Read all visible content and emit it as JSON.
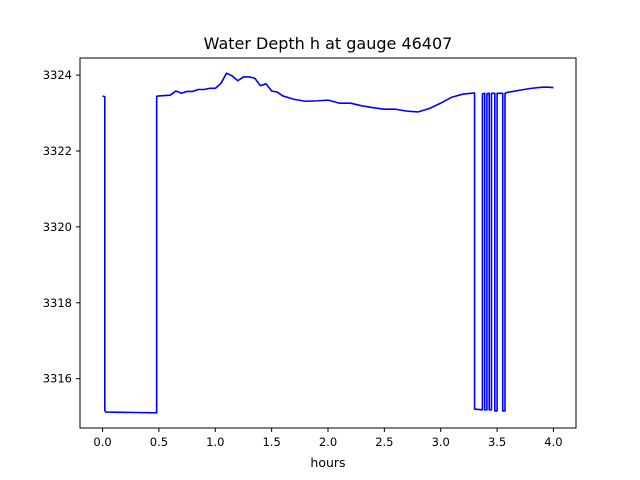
{
  "chart_data": {
    "type": "line",
    "title": "Water Depth h at gauge 46407",
    "xlabel": "hours",
    "ylabel": "",
    "xlim": [
      -0.2,
      4.2
    ],
    "ylim": [
      3314.7,
      3324.45
    ],
    "xticks": [
      0.0,
      0.5,
      1.0,
      1.5,
      2.0,
      2.5,
      3.0,
      3.5,
      4.0
    ],
    "xtick_labels": [
      "0.0",
      "0.5",
      "1.0",
      "1.5",
      "2.0",
      "2.5",
      "3.0",
      "3.5",
      "4.0"
    ],
    "yticks": [
      3316,
      3318,
      3320,
      3322,
      3324
    ],
    "ytick_labels": [
      "3316",
      "3318",
      "3320",
      "3322",
      "3324"
    ],
    "grid": false,
    "legend": "none",
    "series": [
      {
        "color": "#0000ff",
        "x": [
          0.0,
          0.02,
          0.02,
          0.03,
          0.48,
          0.48,
          0.5,
          0.6,
          0.65,
          0.7,
          0.75,
          0.8,
          0.85,
          0.9,
          0.95,
          1.0,
          1.05,
          1.1,
          1.15,
          1.2,
          1.25,
          1.3,
          1.35,
          1.4,
          1.45,
          1.5,
          1.55,
          1.6,
          1.7,
          1.8,
          1.9,
          2.0,
          2.05,
          2.1,
          2.2,
          2.3,
          2.4,
          2.5,
          2.6,
          2.7,
          2.8,
          2.9,
          3.0,
          3.1,
          3.2,
          3.3,
          3.3,
          3.37,
          3.37,
          3.39,
          3.39,
          3.41,
          3.41,
          3.43,
          3.43,
          3.45,
          3.45,
          3.48,
          3.48,
          3.5,
          3.5,
          3.55,
          3.55,
          3.57,
          3.57,
          3.6,
          3.7,
          3.8,
          3.9,
          3.95,
          4.0
        ],
        "y": [
          3323.45,
          3323.43,
          3315.15,
          3315.12,
          3315.1,
          3323.44,
          3323.45,
          3323.47,
          3323.58,
          3323.52,
          3323.57,
          3323.57,
          3323.62,
          3323.62,
          3323.65,
          3323.65,
          3323.78,
          3324.05,
          3323.98,
          3323.85,
          3323.95,
          3323.95,
          3323.92,
          3323.72,
          3323.77,
          3323.58,
          3323.55,
          3323.45,
          3323.36,
          3323.31,
          3323.32,
          3323.34,
          3323.3,
          3323.26,
          3323.26,
          3323.19,
          3323.14,
          3323.1,
          3323.1,
          3323.05,
          3323.03,
          3323.12,
          3323.26,
          3323.42,
          3323.5,
          3323.53,
          3315.2,
          3315.18,
          3323.5,
          3323.52,
          3315.18,
          3315.18,
          3323.51,
          3323.52,
          3315.18,
          3315.18,
          3323.52,
          3323.52,
          3315.15,
          3315.15,
          3323.52,
          3323.52,
          3315.15,
          3315.15,
          3323.52,
          3323.55,
          3323.6,
          3323.65,
          3323.68,
          3323.68,
          3323.67
        ]
      }
    ]
  }
}
